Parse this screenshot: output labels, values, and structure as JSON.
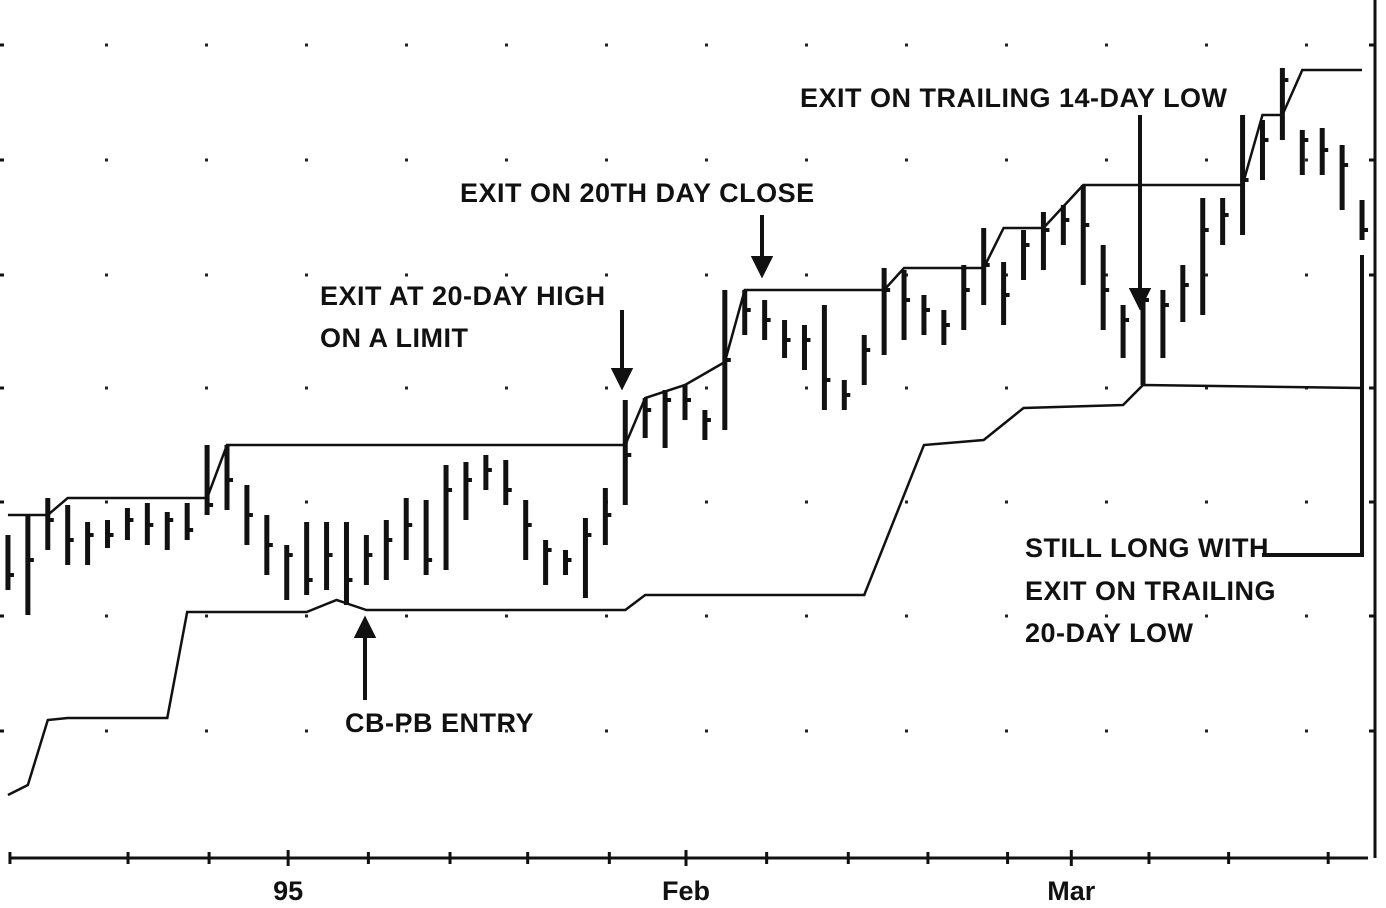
{
  "chart_data": {
    "type": "ohlc",
    "xlim": [
      -0.5,
      68.5
    ],
    "ylim": [
      0,
      858
    ],
    "xticks": [
      {
        "value": 14.07,
        "label": "95"
      },
      {
        "value": 34.05,
        "label": "Feb"
      },
      {
        "value": 53.4,
        "label": "Mar"
      }
    ],
    "minor_xticks": [
      0.1,
      6.03,
      10.1,
      18.1,
      22.2,
      26.1,
      30.2,
      38.1,
      42.2,
      46.2,
      50.2,
      57.3,
      61.3,
      66.3
    ],
    "yticks": [
      127,
      242,
      356,
      470,
      583,
      698,
      813
    ],
    "grid": true,
    "color": "#111111",
    "bars": {
      "x": [
        0,
        1,
        2,
        3,
        4,
        5,
        6,
        7,
        8,
        9,
        10,
        11,
        12,
        13,
        14,
        15,
        16,
        17,
        18,
        19,
        20,
        21,
        22,
        23,
        24,
        25,
        26,
        27,
        28,
        29,
        30,
        31,
        32,
        33,
        34,
        35,
        36,
        37,
        38,
        39,
        40,
        41,
        42,
        43,
        44,
        45,
        46,
        47,
        48,
        49,
        50,
        51,
        52,
        53,
        54,
        55,
        56,
        57,
        58,
        59,
        60,
        61,
        62,
        63,
        64,
        65,
        66,
        67,
        68
      ],
      "high": [
        323,
        343,
        360,
        353,
        336,
        338,
        350,
        355,
        346,
        355,
        413,
        413,
        373,
        343,
        313,
        336,
        336,
        336,
        323,
        338,
        360,
        358,
        393,
        396,
        403,
        398,
        358,
        318,
        308,
        340,
        370,
        458,
        460,
        468,
        473,
        448,
        568,
        568,
        558,
        538,
        533,
        553,
        478,
        523,
        590,
        588,
        563,
        548,
        593,
        630,
        596,
        628,
        646,
        653,
        673,
        613,
        553,
        568,
        568,
        593,
        660,
        660,
        743,
        738,
        790,
        728,
        730,
        713,
        658
      ],
      "low": [
        268,
        243,
        308,
        293,
        293,
        310,
        318,
        313,
        308,
        318,
        343,
        348,
        313,
        283,
        258,
        263,
        268,
        253,
        273,
        278,
        298,
        283,
        288,
        338,
        368,
        353,
        298,
        273,
        283,
        260,
        313,
        353,
        420,
        410,
        438,
        418,
        428,
        523,
        518,
        500,
        488,
        448,
        448,
        473,
        503,
        518,
        523,
        513,
        528,
        553,
        533,
        578,
        588,
        613,
        573,
        528,
        500,
        473,
        500,
        536,
        543,
        613,
        623,
        678,
        718,
        683,
        683,
        648,
        618
      ],
      "close": [
        283,
        298,
        338,
        318,
        323,
        323,
        338,
        333,
        338,
        328,
        353,
        378,
        343,
        313,
        303,
        278,
        303,
        278,
        303,
        318,
        333,
        298,
        368,
        378,
        388,
        368,
        333,
        308,
        298,
        323,
        343,
        403,
        448,
        458,
        458,
        438,
        498,
        548,
        538,
        518,
        518,
        478,
        463,
        508,
        568,
        558,
        548,
        533,
        568,
        593,
        563,
        613,
        628,
        638,
        633,
        568,
        538,
        558,
        553,
        573,
        628,
        643,
        678,
        718,
        778,
        718,
        708,
        693,
        628
      ]
    },
    "lines": [
      {
        "x": [
          0,
          2,
          3,
          10,
          11,
          31,
          32,
          34,
          36,
          37,
          44,
          45,
          49,
          50,
          52,
          54,
          62,
          63,
          64,
          65,
          68
        ],
        "y": [
          343,
          343,
          360,
          360,
          413,
          413,
          460,
          473,
          496,
          568,
          568,
          590,
          590,
          630,
          630,
          673,
          673,
          743,
          743,
          788,
          788
        ]
      },
      {
        "x": [
          0,
          1,
          2,
          3,
          8,
          9,
          15,
          16.5,
          18,
          31,
          32,
          43,
          46,
          49,
          51,
          56,
          57,
          68
        ],
        "y": [
          63,
          73,
          138,
          140,
          140,
          246,
          246,
          258,
          248,
          248,
          263,
          263,
          413,
          418,
          450,
          453,
          473,
          470
        ]
      }
    ],
    "annotations": [
      {
        "lines": [
          "EXIT ON TRAILING 14-DAY LOW"
        ]
      },
      {
        "lines": [
          "EXIT ON 20TH DAY CLOSE"
        ]
      },
      {
        "lines": [
          "EXIT AT 20-DAY HIGH",
          "ON A LIMIT"
        ]
      },
      {
        "lines": [
          "CB-PB ENTRY"
        ]
      },
      {
        "lines": [
          "STILL LONG WITH",
          "EXIT ON TRAILING",
          "20-DAY LOW"
        ]
      }
    ]
  }
}
